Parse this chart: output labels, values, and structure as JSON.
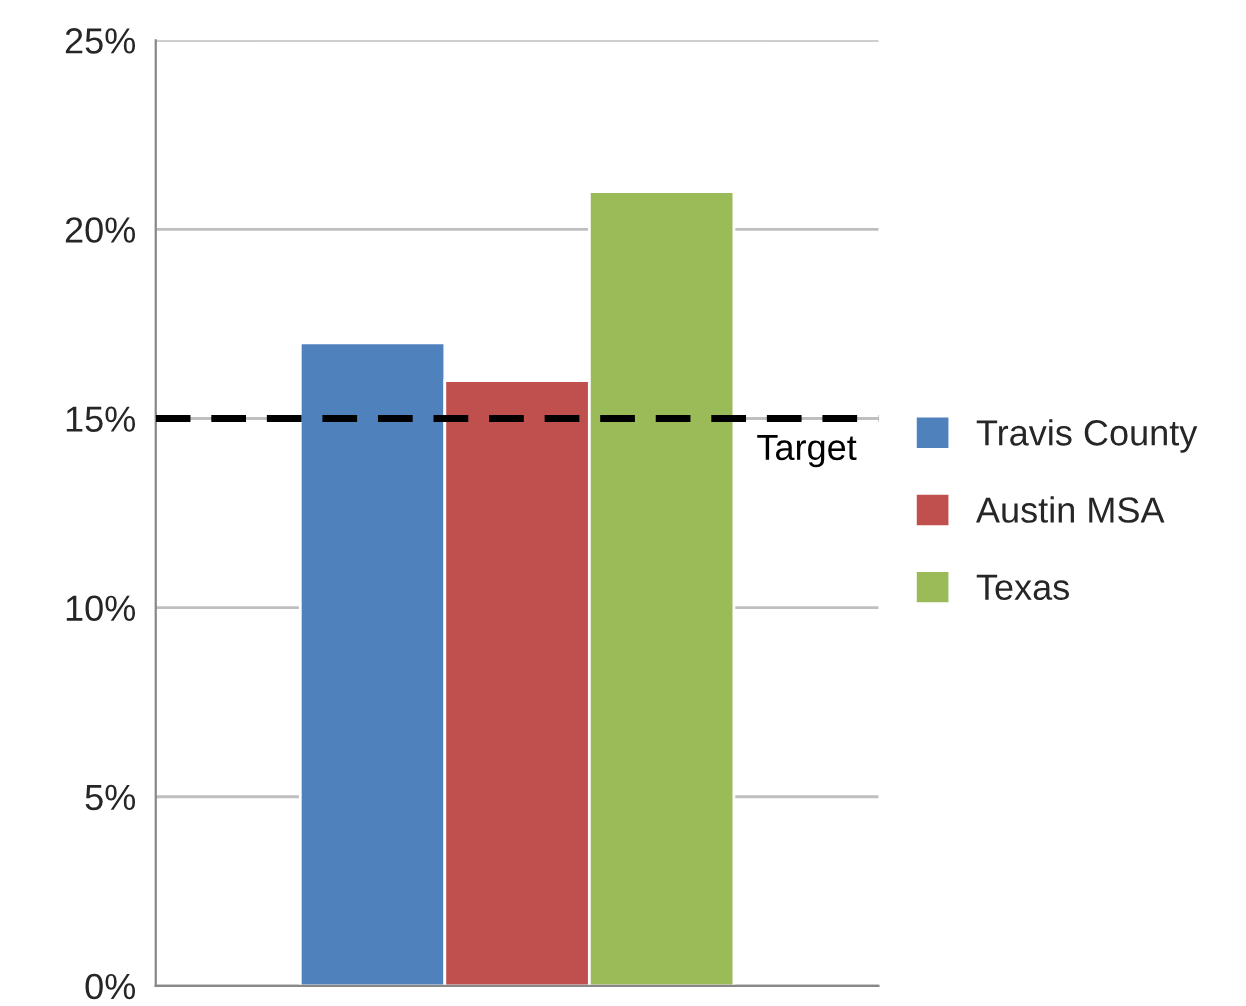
{
  "chart_data": {
    "type": "bar",
    "categories": [
      null
    ],
    "series": [
      {
        "name": "Travis County",
        "color": "#4f81bd",
        "values": [
          17
        ]
      },
      {
        "name": "Austin MSA",
        "color": "#c0504d",
        "values": [
          16
        ]
      },
      {
        "name": "Texas",
        "color": "#9bbb59",
        "values": [
          21
        ]
      }
    ],
    "ylim": [
      0,
      25
    ],
    "yticks": [
      {
        "value": 0,
        "label": "0%"
      },
      {
        "value": 5,
        "label": "5%"
      },
      {
        "value": 10,
        "label": "10%"
      },
      {
        "value": 15,
        "label": "15%"
      },
      {
        "value": 20,
        "label": "20%"
      },
      {
        "value": 25,
        "label": "25%"
      }
    ],
    "grid": "y",
    "legend": "right",
    "ref_lines": [
      {
        "axis": "y",
        "value": 15,
        "label": "Target",
        "line_style": "dashed",
        "color": "#000000"
      }
    ]
  }
}
